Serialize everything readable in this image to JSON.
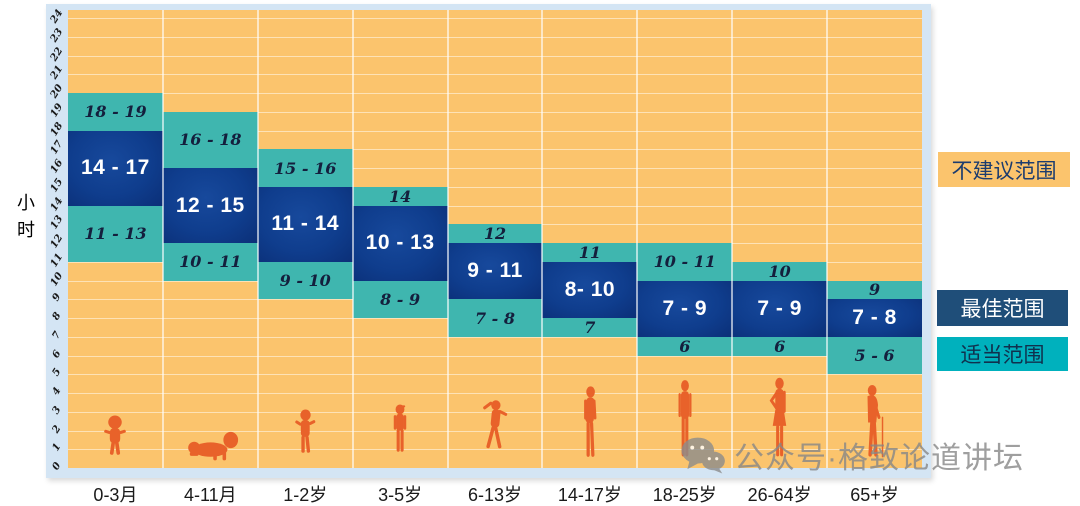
{
  "colors": {
    "not_recommended": "#fbc46d",
    "best_band": "#0f3d8d",
    "best_legend": "#1f4e79",
    "adequate_band": "#3fb6af",
    "adequate_legend": "#00b1bd",
    "figure": "#e8622a",
    "frame": "#d4e5f4",
    "watermark_gray": "#8c8c8c"
  },
  "watermark": {
    "icon": "wechat-icon",
    "text": "公众号·格致论道讲坛"
  },
  "chart_data": {
    "type": "bar",
    "subtype": "stacked-range-bands",
    "title": "",
    "ylabel": "小时",
    "xlabel": "",
    "ylim": [
      0,
      24
    ],
    "yticks": [
      0,
      1,
      2,
      3,
      4,
      5,
      6,
      7,
      8,
      9,
      10,
      11,
      12,
      13,
      14,
      15,
      16,
      17,
      18,
      19,
      20,
      21,
      22,
      23,
      24
    ],
    "grid": true,
    "legend_position": "right",
    "legend": [
      {
        "label": "不建议范围",
        "color": "#fbc46d",
        "text_color": "#1c3c6e"
      },
      {
        "label": "最佳范围",
        "color": "#1f4e79",
        "text_color": "#ffffff"
      },
      {
        "label": "适当范围",
        "color": "#00b1bd",
        "text_color": "#10304d"
      }
    ],
    "categories": [
      "0-3月",
      "4-11月",
      "1-2岁",
      "3-5岁",
      "6-13岁",
      "14-17岁",
      "18-25岁",
      "26-64岁",
      "65+岁"
    ],
    "columns": [
      {
        "age": "0-3月",
        "figure": "baby-standing",
        "upper_adequate": {
          "range": [
            18,
            20
          ],
          "label": "18 - 19"
        },
        "best": {
          "range": [
            14,
            18
          ],
          "label": "14 - 17"
        },
        "lower_adequate": {
          "range": [
            11,
            14
          ],
          "label": "11 - 13"
        }
      },
      {
        "age": "4-11月",
        "figure": "baby-crawling",
        "upper_adequate": {
          "range": [
            16,
            19
          ],
          "label": "16 - 18"
        },
        "best": {
          "range": [
            12,
            16
          ],
          "label": "12 - 15"
        },
        "lower_adequate": {
          "range": [
            10,
            12
          ],
          "label": "10 - 11"
        }
      },
      {
        "age": "1-2岁",
        "figure": "toddler",
        "upper_adequate": {
          "range": [
            15,
            17
          ],
          "label": "15 - 16"
        },
        "best": {
          "range": [
            11,
            15
          ],
          "label": "11 - 14"
        },
        "lower_adequate": {
          "range": [
            9,
            11
          ],
          "label": "9 - 10"
        }
      },
      {
        "age": "3-5岁",
        "figure": "child",
        "upper_adequate": {
          "range": [
            14,
            15
          ],
          "label": "14"
        },
        "best": {
          "range": [
            10,
            14
          ],
          "label": "10 - 13"
        },
        "lower_adequate": {
          "range": [
            8,
            10
          ],
          "label": "8 - 9"
        }
      },
      {
        "age": "6-13岁",
        "figure": "child-running",
        "upper_adequate": {
          "range": [
            12,
            13
          ],
          "label": "12"
        },
        "best": {
          "range": [
            9,
            12
          ],
          "label": "9 - 11"
        },
        "lower_adequate": {
          "range": [
            7,
            9
          ],
          "label": "7 - 8"
        }
      },
      {
        "age": "14-17岁",
        "figure": "teenager",
        "upper_adequate": {
          "range": [
            11,
            12
          ],
          "label": "11"
        },
        "best": {
          "range": [
            8,
            11
          ],
          "label": "8- 10"
        },
        "lower_adequate": {
          "range": [
            7,
            8
          ],
          "label": "7"
        }
      },
      {
        "age": "18-25岁",
        "figure": "young-adult",
        "upper_adequate": {
          "range": [
            10,
            12
          ],
          "label": "10 - 11"
        },
        "best": {
          "range": [
            7,
            10
          ],
          "label": "7 - 9"
        },
        "lower_adequate": {
          "range": [
            6,
            7
          ],
          "label": "6"
        }
      },
      {
        "age": "26-64岁",
        "figure": "adult-hand-on-hip",
        "upper_adequate": {
          "range": [
            10,
            11
          ],
          "label": "10"
        },
        "best": {
          "range": [
            7,
            10
          ],
          "label": "7 - 9"
        },
        "lower_adequate": {
          "range": [
            6,
            7
          ],
          "label": "6"
        }
      },
      {
        "age": "65+岁",
        "figure": "elderly-with-cane",
        "upper_adequate": {
          "range": [
            9,
            10
          ],
          "label": "9"
        },
        "best": {
          "range": [
            7,
            9
          ],
          "label": "7 - 8"
        },
        "lower_adequate": {
          "range": [
            5,
            7
          ],
          "label": "5 - 6"
        }
      }
    ]
  }
}
